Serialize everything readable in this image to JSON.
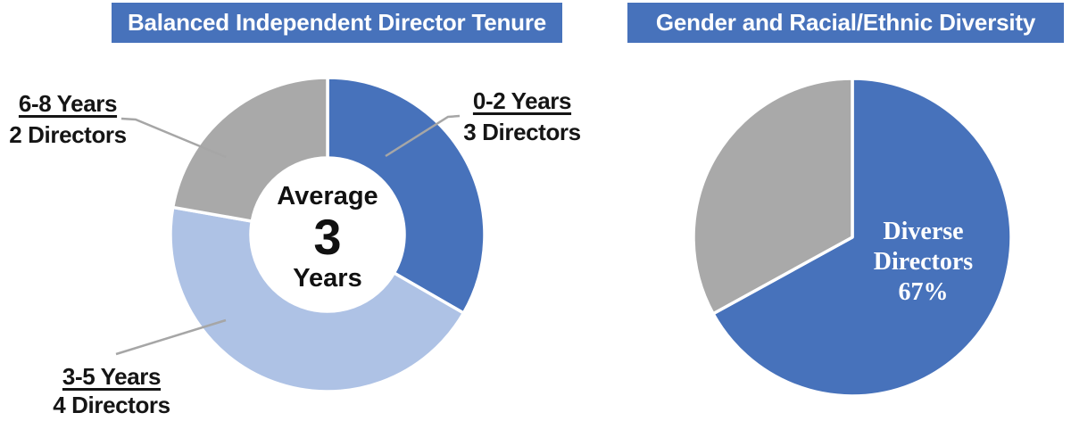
{
  "colors": {
    "accent_blue": "#4772BB",
    "light_blue": "#AEC2E5",
    "gray": "#A9A9A9",
    "leader_line": "#A6A6A6",
    "title_text": "#FFFFFF",
    "label_text": "#151515"
  },
  "tenure": {
    "title": "Balanced Independent Director Tenure",
    "center": {
      "line1": "Average",
      "value": "3",
      "line2": "Years"
    },
    "segments": [
      {
        "label": "0-2 Years",
        "sublabel": "3 Directors"
      },
      {
        "label": "3-5 Years",
        "sublabel": "4 Directors"
      },
      {
        "label": "6-8 Years",
        "sublabel": "2 Directors"
      }
    ]
  },
  "diversity": {
    "title": "Gender and Racial/Ethnic Diversity",
    "label_line1": "Diverse",
    "label_line2": "Directors",
    "label_line3": "67%"
  },
  "chart_data": [
    {
      "type": "pie",
      "subtype": "donut",
      "title": "Balanced Independent Director Tenure",
      "categories": [
        "0-2 Years",
        "3-5 Years",
        "6-8 Years"
      ],
      "values": [
        3,
        4,
        2
      ],
      "value_unit": "Directors",
      "total": 9,
      "center_text": [
        "Average",
        "3",
        "Years"
      ],
      "colors": [
        "#4772BB",
        "#AEC2E5",
        "#A9A9A9"
      ],
      "start_angle_deg": 0,
      "direction": "clockwise",
      "labels_outside_with_leader_lines": true
    },
    {
      "type": "pie",
      "title": "Gender and Racial/Ethnic Diversity",
      "categories": [
        "Diverse Directors",
        ""
      ],
      "values": [
        67,
        33
      ],
      "value_unit": "%",
      "colors": [
        "#4772BB",
        "#A9A9A9"
      ],
      "start_angle_deg": 0,
      "direction": "clockwise",
      "inside_label": "Diverse Directors 67%"
    }
  ]
}
